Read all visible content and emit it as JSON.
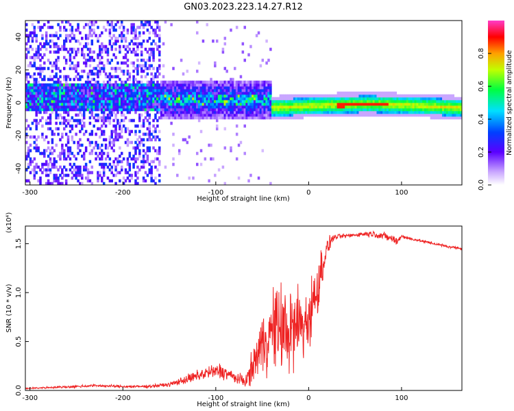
{
  "title": "GN03.2023.223.14.27.R12",
  "colors": {
    "axis": "#000000",
    "snr_line": "#ee2222"
  },
  "chart_data": [
    {
      "type": "heatmap",
      "xlabel": "Height of straight line (km)",
      "ylabel": "Frequency (Hz)",
      "xlim": [
        -305,
        165
      ],
      "ylim": [
        -50,
        50
      ],
      "x_ticks": [
        -300,
        -200,
        -100,
        0,
        100
      ],
      "y_ticks": [
        -40,
        -20,
        0,
        20,
        40
      ],
      "colorbar": {
        "label": "Normalized spectral amplitude",
        "range": [
          0,
          1
        ],
        "ticks": [
          "0.0",
          "0.2",
          "0.4",
          "0.6",
          "0.8"
        ],
        "colormap": "rainbow (white-purple-blue-cyan-green-yellow-red-magenta)"
      },
      "features": [
        {
          "x_range": [
            -305,
            -160
          ],
          "freq_center": 3,
          "spread_hz": 50,
          "amplitude": 0.2
        },
        {
          "x_range": [
            -160,
            -40
          ],
          "freq_center": 2,
          "spread_hz": 12,
          "amplitude": 0.4
        },
        {
          "x_range": [
            -40,
            165
          ],
          "freq_center": -2,
          "spread_hz": 4,
          "amplitude": 0.7
        }
      ]
    },
    {
      "type": "line",
      "xlabel": "Height of straight line (km)",
      "ylabel": "SNR (10 * v/v)",
      "y_multiplier": "(x10⁴)",
      "xlim": [
        -305,
        165
      ],
      "ylim": [
        0,
        1.68
      ],
      "x_ticks": [
        -300,
        -200,
        -100,
        0,
        100
      ],
      "y_ticks": [
        "0.0",
        "0.5",
        "1.0",
        "1.5"
      ],
      "series": [
        {
          "x": [
            -305,
            -280,
            -250,
            -230,
            -200,
            -175,
            -150,
            -140,
            -125,
            -110,
            -95,
            -85,
            -75,
            -67,
            -60,
            -52,
            -45,
            -38,
            -30,
            -22,
            -16,
            -10,
            -5,
            0,
            5,
            10,
            15,
            20,
            25,
            30,
            40,
            50,
            60,
            70,
            80,
            90,
            95,
            100,
            105,
            110,
            120,
            130,
            140,
            150,
            165
          ],
          "y": [
            0.02,
            0.03,
            0.04,
            0.05,
            0.04,
            0.04,
            0.06,
            0.09,
            0.13,
            0.18,
            0.2,
            0.16,
            0.11,
            0.1,
            0.25,
            0.45,
            0.55,
            0.62,
            0.65,
            0.6,
            0.6,
            0.7,
            0.65,
            0.75,
            0.9,
            1.05,
            1.3,
            1.45,
            1.55,
            1.57,
            1.58,
            1.59,
            1.6,
            1.6,
            1.58,
            1.55,
            1.52,
            1.58,
            1.56,
            1.55,
            1.53,
            1.51,
            1.49,
            1.47,
            1.45
          ],
          "noise": [
            0.01,
            0.015,
            0.02,
            0.02,
            0.02,
            0.02,
            0.03,
            0.05,
            0.08,
            0.1,
            0.12,
            0.1,
            0.08,
            0.1,
            0.25,
            0.4,
            0.55,
            0.6,
            0.65,
            0.7,
            0.65,
            0.6,
            0.55,
            0.5,
            0.45,
            0.4,
            0.3,
            0.15,
            0.06,
            0.04,
            0.03,
            0.03,
            0.04,
            0.05,
            0.06,
            0.06,
            0.06,
            0.04,
            0.02,
            0.02,
            0.02,
            0.02,
            0.02,
            0.02,
            0.02
          ]
        }
      ]
    }
  ]
}
